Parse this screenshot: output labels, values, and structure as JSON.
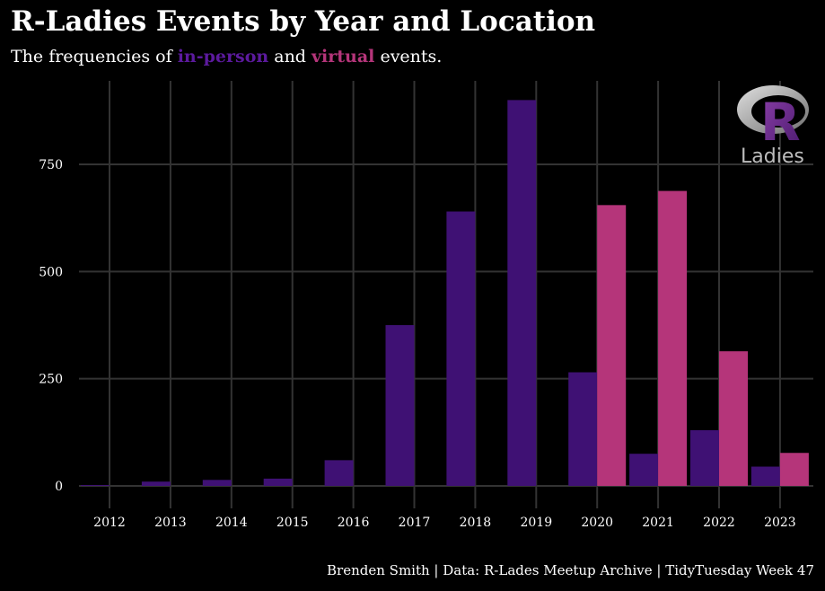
{
  "colors": {
    "background": "#000000",
    "grid": "#333333",
    "in_person": "#3f1174",
    "virtual": "#b5357a",
    "text": "#ffffff"
  },
  "chart_data": {
    "type": "bar",
    "title": "R-Ladies Events by Year and Location",
    "subtitle": {
      "prefix": "The frequencies of ",
      "in_person_label": "in-person",
      "middle": " and ",
      "virtual_label": "virtual",
      "suffix": " events."
    },
    "caption": "Brenden Smith | Data: R-Lades Meetup Archive | TidyTuesday Week 47",
    "xlabel": "",
    "ylabel": "",
    "ylim": [
      0,
      900
    ],
    "y_ticks": [
      0,
      250,
      500,
      750
    ],
    "grid": true,
    "legend": "none (colors explained in subtitle)",
    "categories": [
      "2012",
      "2013",
      "2014",
      "2015",
      "2016",
      "2017",
      "2018",
      "2019",
      "2020",
      "2021",
      "2022",
      "2023"
    ],
    "series": [
      {
        "name": "in-person",
        "color_key": "in_person",
        "values": [
          2,
          10,
          14,
          17,
          60,
          375,
          640,
          900,
          265,
          75,
          130,
          45
        ]
      },
      {
        "name": "virtual",
        "color_key": "virtual",
        "values": [
          0,
          0,
          0,
          0,
          0,
          0,
          0,
          0,
          655,
          688,
          314,
          77
        ]
      }
    ]
  },
  "logo": {
    "letter": "R",
    "wordmark": "Ladies"
  }
}
